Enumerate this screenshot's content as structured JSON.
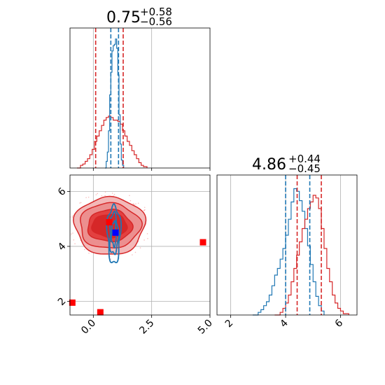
{
  "chart_data": [
    {
      "panel": "top-left",
      "type": "histogram",
      "title": {
        "median": "0.75",
        "plus": "+0.58",
        "minus": "−0.56"
      },
      "xlim": [
        -1.0,
        5.0
      ],
      "grid": true,
      "series": [
        {
          "color": "#d62728",
          "x": [
            -0.7,
            -0.55,
            -0.45,
            -0.35,
            -0.25,
            -0.15,
            -0.05,
            0.05,
            0.15,
            0.25,
            0.35,
            0.45,
            0.55,
            0.65,
            0.75,
            0.85,
            0.95,
            1.05,
            1.15,
            1.25,
            1.35,
            1.45,
            1.55,
            1.65,
            1.75,
            1.85,
            1.95,
            2.05,
            2.15,
            2.3
          ],
          "values": [
            0,
            0.02,
            0.03,
            0.05,
            0.07,
            0.1,
            0.14,
            0.2,
            0.24,
            0.28,
            0.32,
            0.36,
            0.38,
            0.39,
            0.38,
            0.36,
            0.36,
            0.35,
            0.33,
            0.28,
            0.24,
            0.2,
            0.17,
            0.13,
            0.1,
            0.07,
            0.04,
            0.02,
            0.01,
            0
          ]
        },
        {
          "color": "#1f77b4",
          "x": [
            0.5,
            0.55,
            0.6,
            0.65,
            0.7,
            0.75,
            0.8,
            0.85,
            0.9,
            0.95,
            1.0,
            1.05,
            1.1,
            1.15,
            1.2,
            1.25,
            1.3
          ],
          "values": [
            0,
            0.05,
            0.12,
            0.28,
            0.55,
            0.72,
            0.88,
            0.92,
            0.93,
            0.97,
            0.9,
            0.7,
            0.4,
            0.18,
            0.06,
            0.02,
            0
          ]
        }
      ],
      "vlines": [
        {
          "x": 0.1,
          "color": "#d62728"
        },
        {
          "x": 0.75,
          "color": "#1f77b4"
        },
        {
          "x": 1.08,
          "color": "#1f77b4"
        },
        {
          "x": 1.28,
          "color": "#d62728"
        }
      ]
    },
    {
      "panel": "bottom-left",
      "type": "contour",
      "xlim": [
        -1.0,
        5.0
      ],
      "ylim": [
        1.5,
        6.6
      ],
      "xticks": [
        "0.0",
        "2.5",
        "5.0"
      ],
      "yticks": [
        "2",
        "4",
        "6"
      ],
      "grid": true,
      "red_contours": {
        "center": [
          0.7,
          4.75
        ],
        "levels": [
          {
            "rx": 1.5,
            "ry": 1.05,
            "fill": "#f3b8b8"
          },
          {
            "rx": 1.3,
            "ry": 0.82,
            "fill": "#ec8f8f"
          },
          {
            "rx": 0.95,
            "ry": 0.58,
            "fill": "#e34040"
          },
          {
            "rx": 0.75,
            "ry": 0.42,
            "fill": "#d62728"
          }
        ]
      },
      "blue_contours": {
        "center": [
          0.88,
          4.45
        ],
        "levels": [
          {
            "rx": 0.28,
            "ry": 1.05
          },
          {
            "rx": 0.18,
            "ry": 0.75
          },
          {
            "rx": 0.1,
            "ry": 0.45
          }
        ]
      },
      "markers": [
        {
          "x": 4.7,
          "y": 4.15,
          "color": "#ff0000"
        },
        {
          "x": -0.9,
          "y": 1.95,
          "color": "#ff0000"
        },
        {
          "x": 0.3,
          "y": 1.6,
          "color": "#ff0000"
        },
        {
          "x": 0.68,
          "y": 4.88,
          "color": "#ff0000"
        },
        {
          "x": 0.95,
          "y": 4.5,
          "color": "#0000ff"
        }
      ]
    },
    {
      "panel": "bottom-right",
      "type": "histogram",
      "title": {
        "median": "4.86",
        "plus": "+0.44",
        "minus": "−0.45"
      },
      "xlim": [
        1.5,
        6.6
      ],
      "xticks": [
        "2",
        "4",
        "6"
      ],
      "grid": true,
      "series": [
        {
          "color": "#1f77b4",
          "x": [
            2.8,
            3.0,
            3.1,
            3.2,
            3.3,
            3.4,
            3.5,
            3.6,
            3.7,
            3.8,
            3.9,
            4.0,
            4.1,
            4.2,
            4.3,
            4.4,
            4.5,
            4.6,
            4.7,
            4.8,
            4.9,
            5.0,
            5.1,
            5.2,
            5.3,
            5.4
          ],
          "values": [
            0,
            0.02,
            0.04,
            0.07,
            0.1,
            0.15,
            0.22,
            0.3,
            0.35,
            0.42,
            0.5,
            0.6,
            0.72,
            0.85,
            0.95,
            0.93,
            0.86,
            0.78,
            0.65,
            0.52,
            0.38,
            0.25,
            0.14,
            0.07,
            0.03,
            0
          ]
        },
        {
          "color": "#d62728",
          "x": [
            3.6,
            3.8,
            3.9,
            4.0,
            4.1,
            4.2,
            4.3,
            4.4,
            4.5,
            4.6,
            4.7,
            4.8,
            4.9,
            5.0,
            5.1,
            5.2,
            5.3,
            5.4,
            5.5,
            5.6,
            5.7,
            5.8,
            5.9,
            6.0,
            6.1,
            6.3
          ],
          "values": [
            0,
            0.02,
            0.05,
            0.09,
            0.15,
            0.25,
            0.35,
            0.45,
            0.55,
            0.65,
            0.72,
            0.8,
            0.85,
            0.9,
            0.88,
            0.8,
            0.65,
            0.5,
            0.35,
            0.25,
            0.15,
            0.09,
            0.05,
            0.03,
            0.01,
            0
          ]
        }
      ],
      "vlines": [
        {
          "x": 4.0,
          "color": "#1f77b4"
        },
        {
          "x": 4.42,
          "color": "#d62728"
        },
        {
          "x": 4.88,
          "color": "#1f77b4"
        },
        {
          "x": 5.3,
          "color": "#d62728"
        }
      ]
    }
  ]
}
